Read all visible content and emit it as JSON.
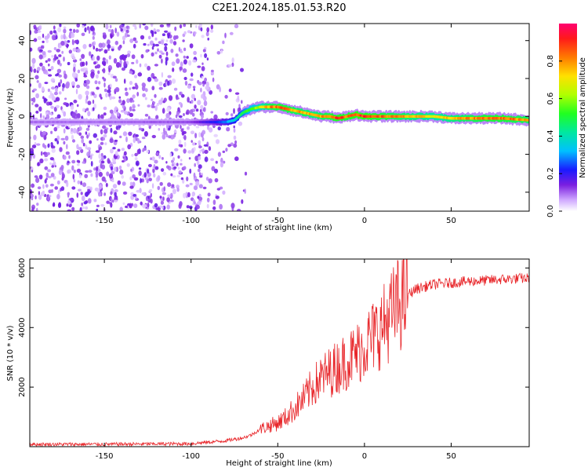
{
  "title": "C2E1.2024.185.01.53.R20",
  "chart_data": [
    {
      "type": "heatmap",
      "title": "C2E1.2024.185.01.53.R20",
      "xlabel": "Height of straight line (km)",
      "ylabel": "Frequency (Hz)",
      "xlim": [
        -193,
        95
      ],
      "ylim": [
        -50,
        49
      ],
      "xticks": [
        -150,
        -100,
        -50,
        0,
        50
      ],
      "yticks": [
        -40,
        -20,
        0,
        20,
        40
      ],
      "xtick_labels": [
        "-150",
        "-100",
        "-50",
        "0",
        "50"
      ],
      "ytick_labels": [
        "-40",
        "-20",
        "0",
        "20",
        "40"
      ],
      "ridge": {
        "description_of_data": "frequency of peak spectral amplitude vs height",
        "x": [
          -193,
          -150,
          -100,
          -90,
          -80,
          -75,
          -70,
          -65,
          -60,
          -55,
          -50,
          -45,
          -40,
          -35,
          -30,
          -25,
          -20,
          -15,
          -10,
          -5,
          0,
          10,
          20,
          30,
          40,
          50,
          60,
          70,
          80,
          95
        ],
        "freq": [
          -3,
          -3,
          -3,
          -3,
          -3,
          -2,
          2,
          4,
          5,
          5,
          5,
          4,
          3,
          2,
          1,
          0,
          0,
          -1,
          0,
          1,
          0,
          0,
          0,
          0,
          0,
          -1,
          -1,
          -1,
          -1,
          -2
        ],
        "amplitude": [
          0.1,
          0.1,
          0.12,
          0.2,
          0.3,
          0.4,
          0.5,
          0.6,
          0.7,
          0.85,
          0.9,
          0.9,
          0.85,
          0.85,
          0.8,
          0.85,
          0.9,
          0.95,
          0.9,
          0.95,
          0.95,
          0.9,
          0.85,
          0.8,
          0.75,
          0.8,
          0.85,
          0.9,
          0.9,
          0.85
        ]
      },
      "colorbar": {
        "label": "Normalized spectral amplitude",
        "range": [
          0.0,
          1.0
        ],
        "ticks": [
          "0.0",
          "0.2",
          "0.4",
          "0.6",
          "0.8"
        ],
        "tick_values": [
          0.0,
          0.2,
          0.4,
          0.6,
          0.8
        ]
      }
    },
    {
      "type": "line",
      "xlabel": "Height of straight line (km)",
      "ylabel": "SNR (10 * v/v)",
      "xlim": [
        -193,
        95
      ],
      "ylim": [
        0,
        6300
      ],
      "xticks": [
        -150,
        -100,
        -50,
        0,
        50
      ],
      "yticks": [
        2000,
        4000,
        6000
      ],
      "xtick_labels": [
        "-150",
        "-100",
        "-50",
        "0",
        "50"
      ],
      "ytick_labels": [
        "2000",
        "4000",
        "6000"
      ],
      "series": [
        {
          "name": "SNR",
          "color": "#e8262a",
          "x": [
            -193,
            -150,
            -100,
            -80,
            -70,
            -65,
            -60,
            -55,
            -50,
            -45,
            -40,
            -35,
            -30,
            -25,
            -20,
            -15,
            -10,
            -5,
            0,
            5,
            10,
            15,
            20,
            25,
            30,
            40,
            50,
            60,
            70,
            80,
            90,
            95
          ],
          "y": [
            80,
            80,
            100,
            200,
            300,
            400,
            600,
            700,
            800,
            1000,
            1300,
            1600,
            2000,
            2300,
            2500,
            2700,
            2900,
            3100,
            3400,
            3700,
            4000,
            4400,
            4800,
            5100,
            5300,
            5450,
            5500,
            5550,
            5580,
            5620,
            5650,
            5650
          ]
        }
      ]
    }
  ],
  "colors": {
    "snr_line": "#e8262a",
    "axis": "#000000"
  }
}
